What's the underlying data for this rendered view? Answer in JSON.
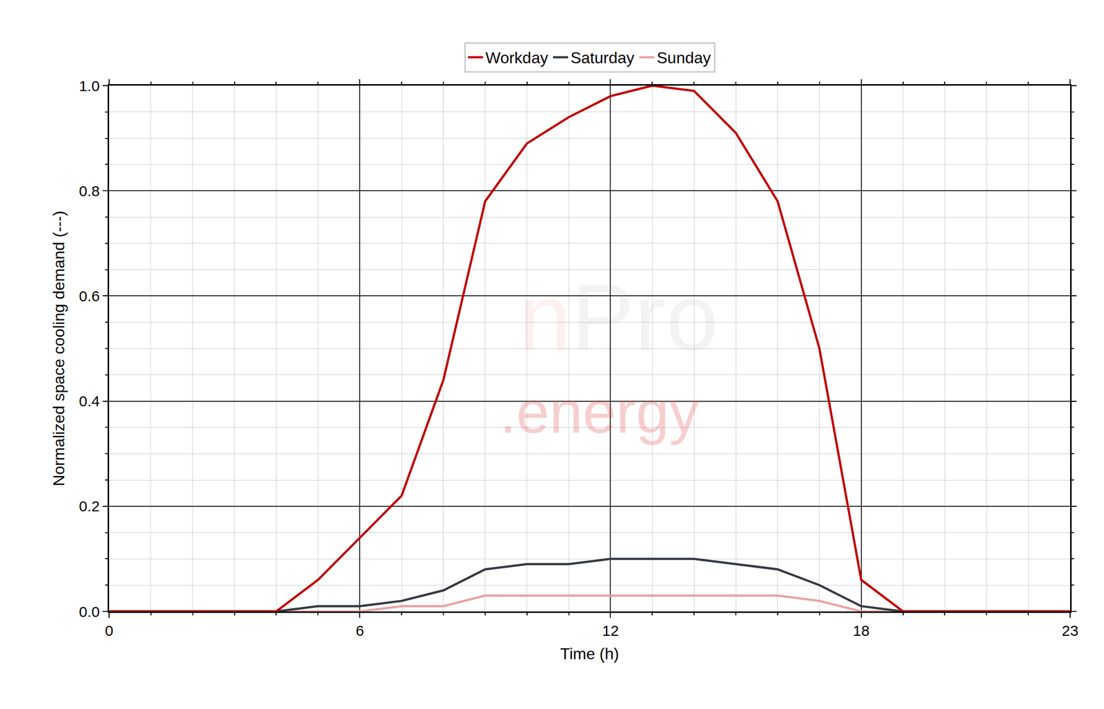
{
  "chart_data": {
    "type": "line",
    "x_label": "Time (h)",
    "y_label": "Normalized space cooling demand (---)",
    "x": [
      0,
      1,
      2,
      3,
      4,
      5,
      6,
      7,
      8,
      9,
      10,
      11,
      12,
      13,
      14,
      15,
      16,
      17,
      18,
      19,
      20,
      21,
      22,
      23
    ],
    "series": [
      {
        "name": "Workday",
        "color": "#c00000",
        "values": [
          0,
          0,
          0,
          0,
          0,
          0.06,
          0.14,
          0.22,
          0.44,
          0.78,
          0.89,
          0.94,
          0.98,
          1.0,
          0.99,
          0.91,
          0.78,
          0.5,
          0.06,
          0,
          0,
          0,
          0,
          0
        ]
      },
      {
        "name": "Saturday",
        "color": "#343a40",
        "values": [
          0,
          0,
          0,
          0,
          0,
          0.01,
          0.01,
          0.02,
          0.04,
          0.08,
          0.09,
          0.09,
          0.1,
          0.1,
          0.1,
          0.09,
          0.08,
          0.05,
          0.01,
          0,
          0,
          0,
          0,
          0
        ]
      },
      {
        "name": "Sunday",
        "color": "#e8a3a3",
        "values": [
          0,
          0,
          0,
          0,
          0,
          0,
          0,
          0.01,
          0.01,
          0.03,
          0.03,
          0.03,
          0.03,
          0.03,
          0.03,
          0.03,
          0.03,
          0.02,
          0,
          0,
          0,
          0,
          0,
          0
        ]
      }
    ],
    "xlim": [
      0,
      23
    ],
    "xticks": [
      0,
      6,
      12,
      18,
      23
    ],
    "ylim": [
      0,
      1
    ],
    "yticks": [
      {
        "value": 0,
        "label": "0.0"
      },
      0.2,
      0.4,
      0.6,
      0.8,
      {
        "value": 1,
        "label": "1.0"
      }
    ],
    "grid": true,
    "legend": "top",
    "annotations": [
      "nPro",
      ".energy"
    ]
  }
}
